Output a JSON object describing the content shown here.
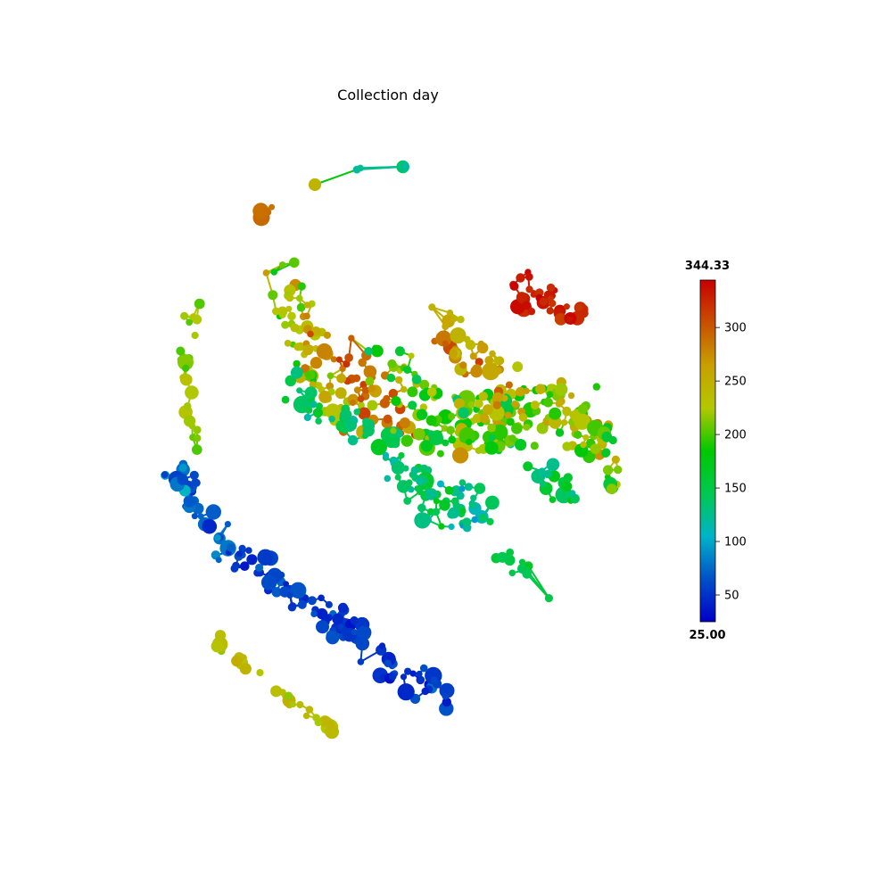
{
  "chart_data": {
    "type": "scatter",
    "title": "Collection day",
    "colorbar": {
      "min": 25.0,
      "max": 344.33,
      "min_label": "25.00",
      "max_label": "344.33",
      "ticks": [
        50,
        100,
        150,
        200,
        250,
        300
      ],
      "tick_labels": [
        "50",
        "100",
        "150",
        "200",
        "250",
        "300"
      ],
      "colormap": [
        "#0000c8",
        "#0050c8",
        "#00b4c8",
        "#00c850",
        "#00c800",
        "#b4c800",
        "#c8a000",
        "#c85000",
        "#c80000"
      ]
    },
    "axes_visible": false,
    "legend": "none"
  }
}
